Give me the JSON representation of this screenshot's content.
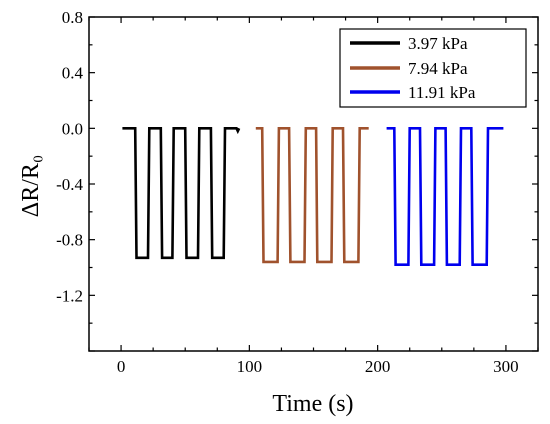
{
  "chart_data": {
    "type": "line",
    "xlabel": "Time (s)",
    "ylabel": "ΔR/R₀",
    "xlim": [
      -25,
      325
    ],
    "ylim": [
      -1.6,
      0.8
    ],
    "xticks": [
      0,
      100,
      200,
      300
    ],
    "yticks": [
      -1.2,
      -0.8,
      -0.4,
      0.0,
      0.4,
      0.8
    ],
    "ytick_labels": [
      "-1.2",
      "-0.8",
      "-0.4",
      "0.0",
      "0.4",
      "0.8"
    ],
    "legend_position": "top-right",
    "grid": false,
    "series": [
      {
        "name": "3.97 kPa",
        "color": "#000000",
        "x": [
          1,
          11,
          12,
          21,
          22,
          31,
          32,
          40,
          41,
          50,
          51,
          60,
          61,
          70,
          71,
          80,
          81,
          90,
          91,
          92
        ],
        "y": [
          0.0,
          0.0,
          -0.93,
          -0.93,
          0.0,
          0.0,
          -0.93,
          -0.93,
          0.0,
          0.0,
          -0.93,
          -0.93,
          0.0,
          0.0,
          -0.93,
          -0.93,
          0.0,
          0.0,
          -0.02,
          0.0
        ]
      },
      {
        "name": "7.94 kPa",
        "color": "#a0522d",
        "x": [
          105,
          110,
          111,
          122,
          123,
          131,
          132,
          143,
          144,
          152,
          153,
          164,
          165,
          173,
          174,
          185,
          186,
          193
        ],
        "y": [
          0.0,
          0.0,
          -0.96,
          -0.96,
          0.0,
          0.0,
          -0.96,
          -0.96,
          0.0,
          0.0,
          -0.96,
          -0.96,
          0.0,
          0.0,
          -0.96,
          -0.96,
          0.0,
          0.0
        ]
      },
      {
        "name": "11.91 kPa",
        "color": "#0000ee",
        "x": [
          207,
          213,
          214,
          224,
          225,
          233,
          234,
          244,
          245,
          253,
          254,
          264,
          265,
          273,
          274,
          285,
          286,
          298
        ],
        "y": [
          0.0,
          0.0,
          -0.98,
          -0.98,
          0.0,
          0.0,
          -0.98,
          -0.98,
          0.0,
          0.0,
          -0.98,
          -0.98,
          0.0,
          0.0,
          -0.98,
          -0.98,
          0.0,
          0.0
        ]
      }
    ]
  }
}
